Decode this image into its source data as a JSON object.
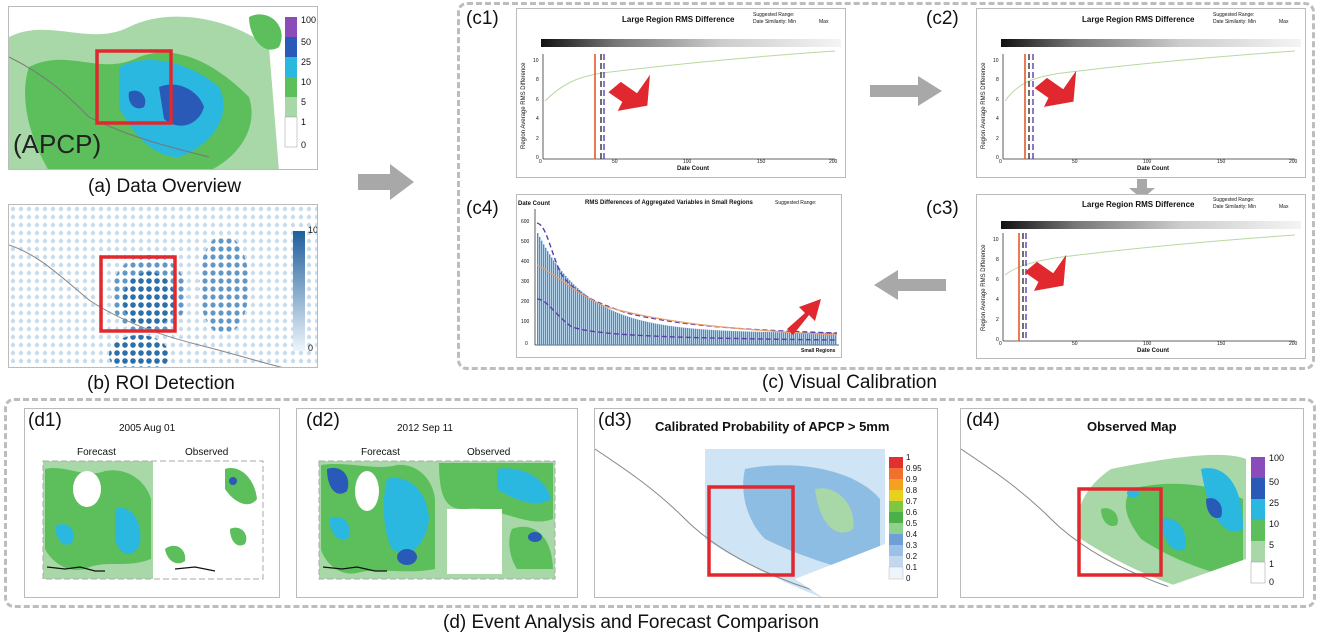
{
  "panel_a": {
    "tag": "(APCP)",
    "caption": "(a) Data Overview",
    "legend": [
      "100",
      "50",
      "25",
      "10",
      "5",
      "1",
      "0"
    ]
  },
  "panel_b": {
    "caption": "(b) ROI Detection",
    "legend_max": "10",
    "legend_min": "0"
  },
  "panel_c": {
    "caption": "(c) Visual Calibration",
    "c1": {
      "tag": "(c1)",
      "title": "Large Region RMS Difference",
      "suggested": "Suggested Range:",
      "similarity": "Date Similarity: Min",
      "max": "Max",
      "ylabel": "Region Average RMS Difference",
      "xlabel": "Date Count",
      "xticks": [
        "0",
        "50",
        "100",
        "150",
        "200"
      ],
      "yticks": [
        "0",
        "2",
        "4",
        "6",
        "8",
        "10"
      ]
    },
    "c2": {
      "tag": "(c2)",
      "title": "Large Region RMS Difference",
      "suggested": "Suggested Range:",
      "similarity": "Date Similarity: Min",
      "max": "Max",
      "ylabel": "Region Average RMS Difference",
      "xlabel": "Date Count",
      "xticks": [
        "0",
        "50",
        "100",
        "150",
        "200"
      ],
      "yticks": [
        "0",
        "2",
        "4",
        "6",
        "8",
        "10"
      ]
    },
    "c3": {
      "tag": "(c3)",
      "title": "Large Region RMS Difference",
      "suggested": "Suggested Range:",
      "similarity": "Date Similarity: Min",
      "max": "Max",
      "ylabel": "Region Average RMS Difference",
      "xlabel": "Date Count",
      "xticks": [
        "0",
        "50",
        "100",
        "150",
        "200"
      ],
      "yticks": [
        "0",
        "2",
        "4",
        "6",
        "8",
        "10"
      ]
    },
    "c4": {
      "tag": "(c4)",
      "title": "RMS Differences of Aggregated Variables in Small Regions",
      "suggested": "Suggested Range:",
      "ylabel": "Date Count",
      "xlabel": "Small Regions",
      "yticks": [
        "0",
        "100",
        "200",
        "300",
        "400",
        "500",
        "600"
      ]
    }
  },
  "panel_d": {
    "caption": "(d) Event Analysis and Forecast Comparison",
    "d1": {
      "tag": "(d1)",
      "date": "2005 Aug 01",
      "forecast": "Forecast",
      "observed": "Observed"
    },
    "d2": {
      "tag": "(d2)",
      "date": "2012 Sep 11",
      "forecast": "Forecast",
      "observed": "Observed"
    },
    "d3": {
      "tag": "(d3)",
      "title": "Calibrated Probability of APCP > 5mm",
      "legend": [
        "1",
        "0.95",
        "0.9",
        "0.8",
        "0.7",
        "0.6",
        "0.5",
        "0.4",
        "0.3",
        "0.2",
        "0.1",
        "0"
      ]
    },
    "d4": {
      "tag": "(d4)",
      "title": "Observed Map",
      "legend": [
        "100",
        "50",
        "25",
        "10",
        "5",
        "1",
        "0"
      ]
    }
  },
  "colors": {
    "roi_box": "#e0282e",
    "arrow": "#e0282e",
    "flow_arrow": "#a8a8a8",
    "apcp_scale": [
      "#ffffff",
      "#a8d8a8",
      "#5cbf5c",
      "#2ab8e0",
      "#2a5ab8",
      "#8b4bb8"
    ]
  }
}
